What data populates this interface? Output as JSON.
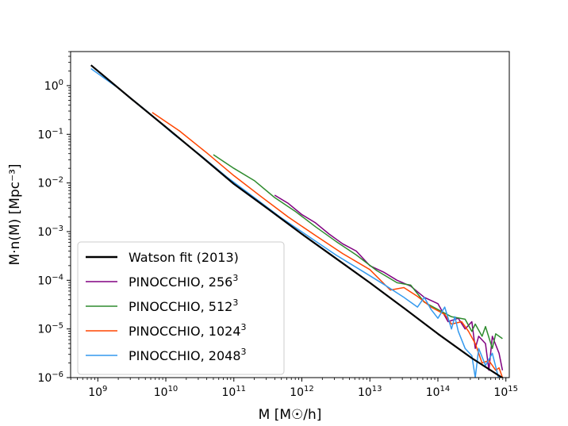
{
  "chart_data": {
    "type": "line",
    "title": "",
    "xlabel": "M [M☉/h]",
    "ylabel": "M·n(M) [Mpc⁻³]",
    "xscale": "log",
    "yscale": "log",
    "xlim_log10": [
      8.6,
      15.05
    ],
    "ylim_log10": [
      -6,
      0.7
    ],
    "x_ticks": [
      {
        "exp": 9,
        "base": "10",
        "sup": "9"
      },
      {
        "exp": 10,
        "base": "10",
        "sup": "10"
      },
      {
        "exp": 11,
        "base": "10",
        "sup": "11"
      },
      {
        "exp": 12,
        "base": "10",
        "sup": "12"
      },
      {
        "exp": 13,
        "base": "10",
        "sup": "13"
      },
      {
        "exp": 14,
        "base": "10",
        "sup": "14"
      },
      {
        "exp": 15,
        "base": "10",
        "sup": "15"
      }
    ],
    "y_ticks": [
      {
        "exp": 0,
        "base": "10",
        "sup": "0"
      },
      {
        "exp": -1,
        "base": "10",
        "sup": "−1"
      },
      {
        "exp": -2,
        "base": "10",
        "sup": "−2"
      },
      {
        "exp": -3,
        "base": "10",
        "sup": "−3"
      },
      {
        "exp": -4,
        "base": "10",
        "sup": "−4"
      },
      {
        "exp": -5,
        "base": "10",
        "sup": "−5"
      },
      {
        "exp": -6,
        "base": "10",
        "sup": "−6"
      }
    ],
    "legend": {
      "position": "lower-left",
      "entries": [
        {
          "label": "Watson fit (2013)",
          "base": "Watson fit (2013)",
          "sup": "",
          "color": "#000000"
        },
        {
          "label": "PINOCCHIO, 256³",
          "base": "PINOCCHIO, 256",
          "sup": "3",
          "color": "#800080"
        },
        {
          "label": "PINOCCHIO, 512³",
          "base": "PINOCCHIO, 512",
          "sup": "3",
          "color": "#2e8b2e"
        },
        {
          "label": "PINOCCHIO, 1024³",
          "base": "PINOCCHIO, 1024",
          "sup": "3",
          "color": "#ff4500"
        },
        {
          "label": "PINOCCHIO, 2048³",
          "base": "PINOCCHIO, 2048",
          "sup": "3",
          "color": "#3399ee"
        }
      ]
    },
    "series": [
      {
        "name": "Watson fit (2013)",
        "color": "#000000",
        "width": 2.2,
        "log10_x": [
          8.9,
          9.5,
          10.0,
          10.5,
          11.0,
          11.5,
          12.0,
          12.5,
          13.0,
          13.5,
          14.0,
          14.5,
          15.0
        ],
        "log10_y": [
          0.42,
          -0.28,
          -0.85,
          -1.43,
          -2.02,
          -2.53,
          -3.05,
          -3.55,
          -4.05,
          -4.57,
          -5.1,
          -5.6,
          -6.05
        ]
      },
      {
        "name": "PINOCCHIO, 256³",
        "color": "#800080",
        "width": 1.5,
        "log10_x": [
          11.6,
          11.8,
          12.0,
          12.2,
          12.4,
          12.6,
          12.8,
          13.0,
          13.2,
          13.4,
          13.6,
          13.8,
          14.0,
          14.15,
          14.3,
          14.4,
          14.5,
          14.55,
          14.6,
          14.7,
          14.75,
          14.8,
          14.9,
          14.95
        ],
        "log10_y": [
          -2.25,
          -2.42,
          -2.65,
          -2.82,
          -3.05,
          -3.25,
          -3.4,
          -3.7,
          -3.83,
          -4.0,
          -4.12,
          -4.35,
          -4.48,
          -4.85,
          -4.78,
          -5.0,
          -4.85,
          -5.4,
          -5.15,
          -5.3,
          -5.85,
          -5.15,
          -5.5,
          -5.85
        ]
      },
      {
        "name": "PINOCCHIO, 512³",
        "color": "#2e8b2e",
        "width": 1.5,
        "log10_x": [
          10.7,
          11.0,
          11.3,
          11.6,
          11.9,
          12.2,
          12.5,
          12.8,
          13.1,
          13.4,
          13.6,
          13.8,
          14.0,
          14.2,
          14.4,
          14.5,
          14.55,
          14.65,
          14.7,
          14.8,
          14.85,
          14.95
        ],
        "log10_y": [
          -1.42,
          -1.7,
          -1.95,
          -2.3,
          -2.58,
          -2.9,
          -3.2,
          -3.48,
          -3.8,
          -4.05,
          -4.1,
          -4.45,
          -4.6,
          -4.75,
          -4.8,
          -5.05,
          -4.9,
          -5.15,
          -4.95,
          -5.4,
          -5.1,
          -5.2
        ]
      },
      {
        "name": "PINOCCHIO, 1024³",
        "color": "#ff4500",
        "width": 1.5,
        "log10_x": [
          9.8,
          10.2,
          10.6,
          11.0,
          11.4,
          11.8,
          12.2,
          12.6,
          13.0,
          13.3,
          13.5,
          13.7,
          13.9,
          14.1,
          14.2,
          14.35,
          14.45,
          14.55,
          14.65,
          14.75,
          14.85,
          14.9,
          14.95
        ],
        "log10_y": [
          -0.55,
          -0.93,
          -1.38,
          -1.85,
          -2.28,
          -2.7,
          -3.08,
          -3.45,
          -3.78,
          -4.2,
          -4.15,
          -4.33,
          -4.55,
          -4.7,
          -4.9,
          -4.85,
          -5.05,
          -5.3,
          -5.7,
          -5.65,
          -5.85,
          -5.8,
          -6.0
        ]
      },
      {
        "name": "PINOCCHIO, 2048³",
        "color": "#3399ee",
        "width": 1.5,
        "log10_x": [
          8.9,
          9.3,
          9.7,
          10.1,
          10.5,
          10.9,
          11.3,
          11.7,
          12.1,
          12.5,
          12.9,
          13.2,
          13.5,
          13.7,
          13.8,
          13.9,
          14.0,
          14.1,
          14.2,
          14.25,
          14.3,
          14.4,
          14.5,
          14.55,
          14.6,
          14.7,
          14.8,
          14.9
        ],
        "log10_y": [
          0.35,
          -0.05,
          -0.5,
          -0.98,
          -1.42,
          -1.88,
          -2.3,
          -2.72,
          -3.1,
          -3.48,
          -3.82,
          -4.08,
          -4.35,
          -4.55,
          -4.35,
          -4.6,
          -4.78,
          -4.55,
          -5.0,
          -4.75,
          -5.05,
          -5.4,
          -5.55,
          -6.0,
          -5.4,
          -5.75,
          -5.5,
          -6.05
        ]
      }
    ]
  }
}
